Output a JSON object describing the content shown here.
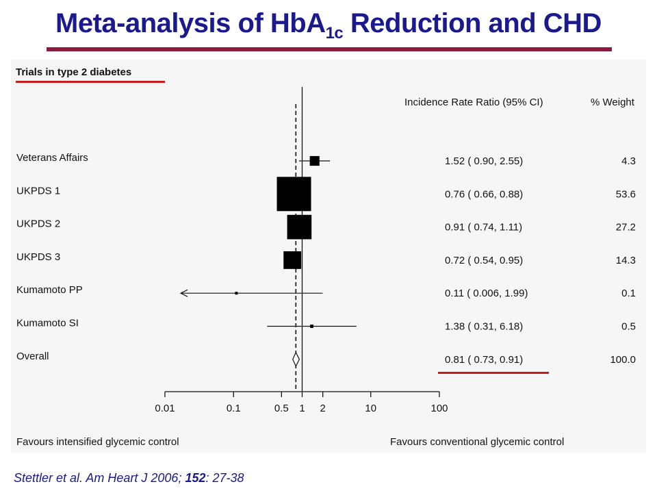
{
  "title": {
    "pre": "Meta-analysis of HbA",
    "sub": "1c",
    "post": " Reduction and CHD"
  },
  "citation": {
    "pre": "Stettler et al. Am Heart J 2006; ",
    "volume": "152",
    "post": ": 27-38"
  },
  "colors": {
    "title": "#1a1a8c",
    "title_rule": "#8b1a3c",
    "highlight": "#cc1a1a",
    "panel": "#f6f6f6",
    "ink": "#111111"
  },
  "chart_data": {
    "type": "forest",
    "subtitle": "Trials in type 2 diabetes",
    "header_ci": "Incidence Rate Ratio (95% CI)",
    "header_weight": "% Weight",
    "x_scale": "log",
    "xlim": [
      0.01,
      100
    ],
    "x_ticks": [
      0.01,
      0.1,
      0.5,
      1,
      2,
      10,
      100
    ],
    "x_tick_labels": [
      "0.01",
      "0.1",
      "0.5",
      "1",
      "2",
      "10",
      "100"
    ],
    "reference_line": 1,
    "overall_line": 0.81,
    "favours_left": "Favours intensified glycemic control",
    "favours_right": "Favours conventional glycemic control",
    "studies": [
      {
        "name": "Veterans Affairs",
        "estimate": 1.52,
        "lower": 0.9,
        "upper": 2.55,
        "ci_text": "1.52 ( 0.90, 2.55)",
        "weight": 4.3,
        "weight_text": "4.3"
      },
      {
        "name": "UKPDS 1",
        "estimate": 0.76,
        "lower": 0.66,
        "upper": 0.88,
        "ci_text": "0.76 ( 0.66, 0.88)",
        "weight": 53.6,
        "weight_text": "53.6"
      },
      {
        "name": "UKPDS 2",
        "estimate": 0.91,
        "lower": 0.74,
        "upper": 1.11,
        "ci_text": "0.91 ( 0.74, 1.11)",
        "weight": 27.2,
        "weight_text": "27.2"
      },
      {
        "name": "UKPDS 3",
        "estimate": 0.72,
        "lower": 0.54,
        "upper": 0.95,
        "ci_text": "0.72 ( 0.54, 0.95)",
        "weight": 14.3,
        "weight_text": "14.3"
      },
      {
        "name": "Kumamoto PP",
        "estimate": 0.11,
        "lower": 0.006,
        "upper": 1.99,
        "ci_text": "0.11 ( 0.006, 1.99)",
        "weight": 0.1,
        "weight_text": "0.1",
        "lower_truncated": true
      },
      {
        "name": "Kumamoto SI",
        "estimate": 1.38,
        "lower": 0.31,
        "upper": 6.18,
        "ci_text": "1.38 ( 0.31, 6.18)",
        "weight": 0.5,
        "weight_text": "0.5"
      }
    ],
    "overall": {
      "name": "Overall",
      "estimate": 0.81,
      "lower": 0.73,
      "upper": 0.91,
      "ci_text": "0.81 ( 0.73, 0.91)",
      "weight": 100.0,
      "weight_text": "100.0"
    }
  }
}
